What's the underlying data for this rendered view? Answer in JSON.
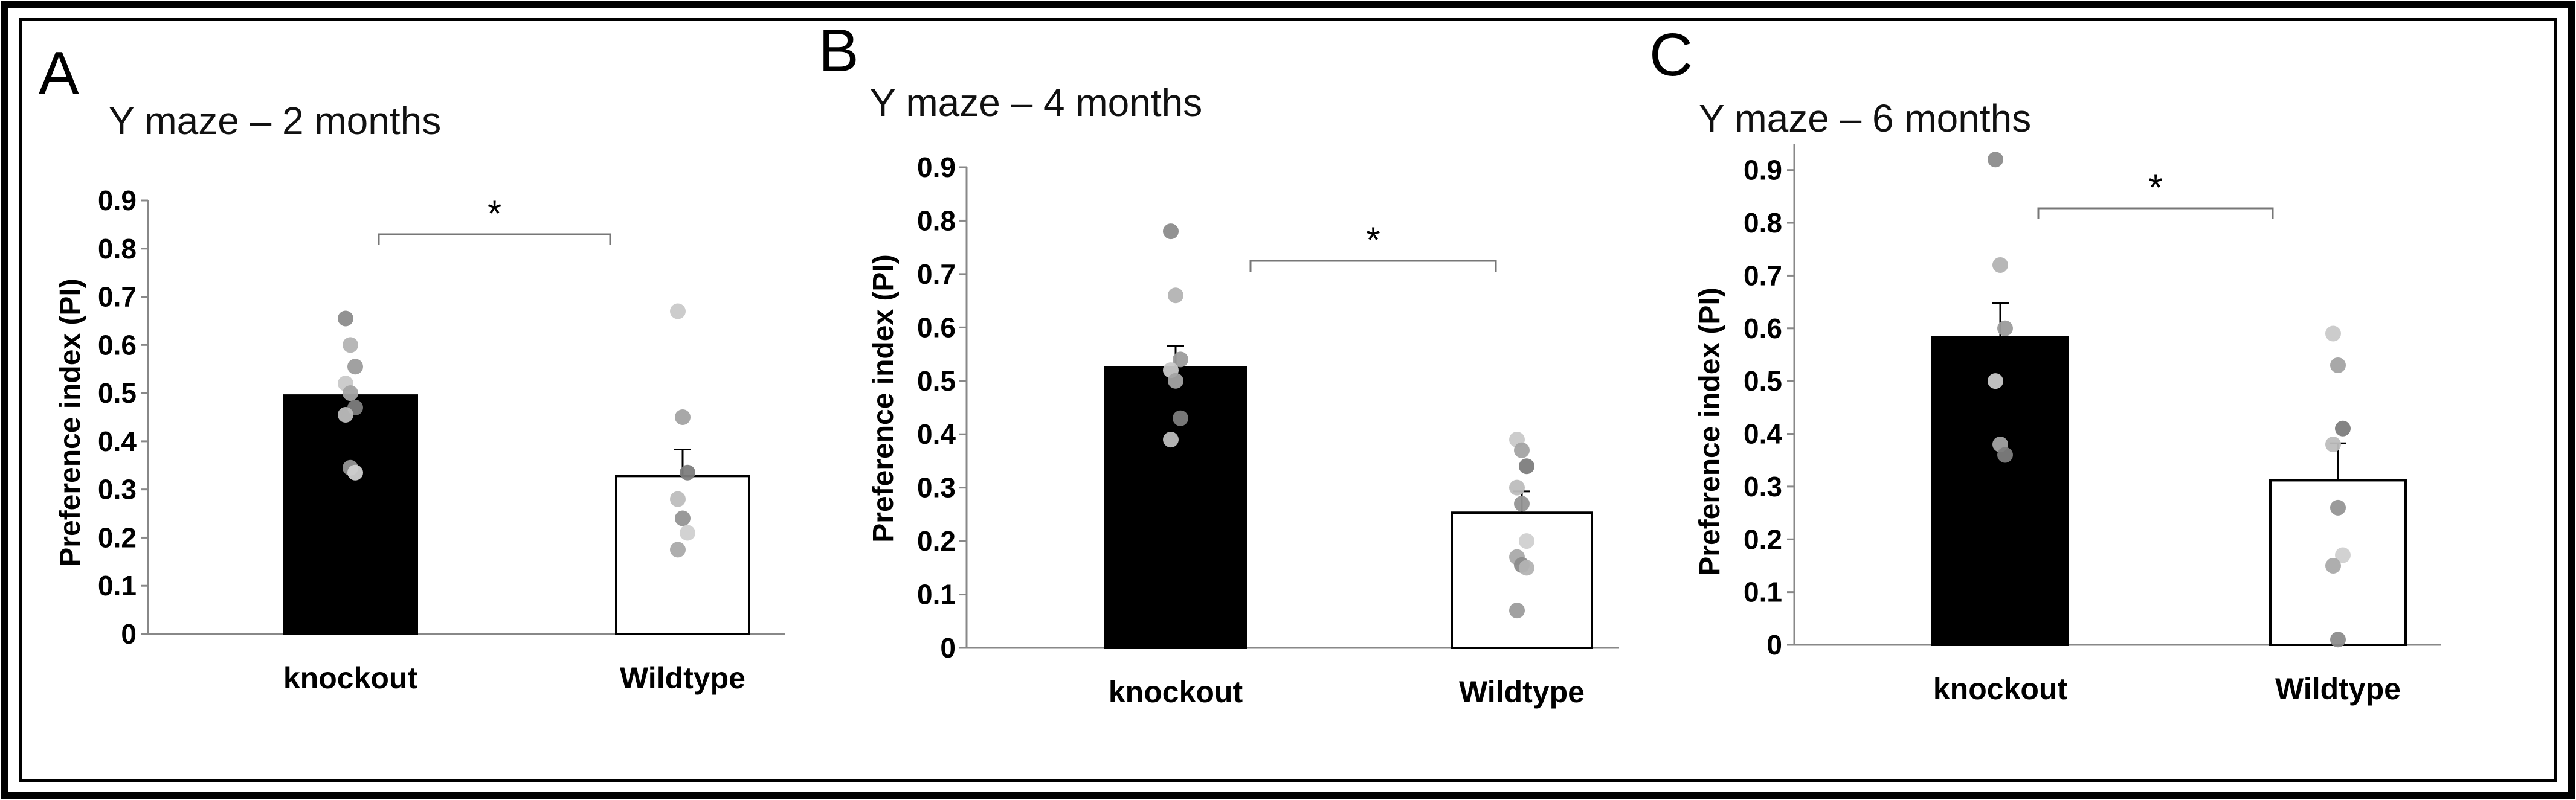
{
  "chart_data": [
    {
      "type": "bar",
      "panel": "A",
      "title": "Y maze – 2 months",
      "xlabel": "",
      "ylabel": "Preference index (PI)",
      "ylim": [
        0,
        0.9
      ],
      "yticks": [
        0,
        0.1,
        0.2,
        0.3,
        0.4,
        0.5,
        0.6,
        0.7,
        0.8,
        0.9
      ],
      "categories": [
        "knockout",
        "Wildtype"
      ],
      "values": [
        0.495,
        0.328
      ],
      "errors": [
        0.0,
        0.055
      ],
      "bar_colors": [
        "#000000",
        "#ffffff"
      ],
      "points": [
        [
          0.655,
          0.6,
          0.555,
          0.52,
          0.5,
          0.47,
          0.455,
          0.345,
          0.335
        ],
        [
          0.67,
          0.45,
          0.335,
          0.28,
          0.24,
          0.21,
          0.175
        ]
      ],
      "significance": "*"
    },
    {
      "type": "bar",
      "panel": "B",
      "title": "Y maze – 4 months",
      "xlabel": "",
      "ylabel": "Preference index (PI)",
      "ylim": [
        0,
        0.9
      ],
      "yticks": [
        0,
        0.1,
        0.2,
        0.3,
        0.4,
        0.5,
        0.6,
        0.7,
        0.8,
        0.9
      ],
      "categories": [
        "knockout",
        "Wildtype"
      ],
      "values": [
        0.525,
        0.253
      ],
      "errors": [
        0.04,
        0.04
      ],
      "bar_colors": [
        "#000000",
        "#ffffff"
      ],
      "points": [
        [
          0.78,
          0.66,
          0.54,
          0.52,
          0.5,
          0.43,
          0.39
        ],
        [
          0.39,
          0.37,
          0.34,
          0.3,
          0.27,
          0.2,
          0.17,
          0.155,
          0.15,
          0.07
        ]
      ],
      "significance": "*"
    },
    {
      "type": "bar",
      "panel": "C",
      "title": "Y maze – 6 months",
      "xlabel": "",
      "ylabel": "Preference index (PI)",
      "ylim": [
        0,
        0.95
      ],
      "yticks": [
        0,
        0.1,
        0.2,
        0.3,
        0.4,
        0.5,
        0.6,
        0.7,
        0.8,
        0.9
      ],
      "categories": [
        "knockout",
        "Wildtype"
      ],
      "values": [
        0.583,
        0.312
      ],
      "errors": [
        0.065,
        0.07
      ],
      "bar_colors": [
        "#000000",
        "#ffffff"
      ],
      "points": [
        [
          0.92,
          0.72,
          0.6,
          0.5,
          0.38,
          0.36
        ],
        [
          0.59,
          0.53,
          0.41,
          0.38,
          0.26,
          0.17,
          0.15,
          0.01
        ]
      ],
      "significance": "*"
    }
  ]
}
